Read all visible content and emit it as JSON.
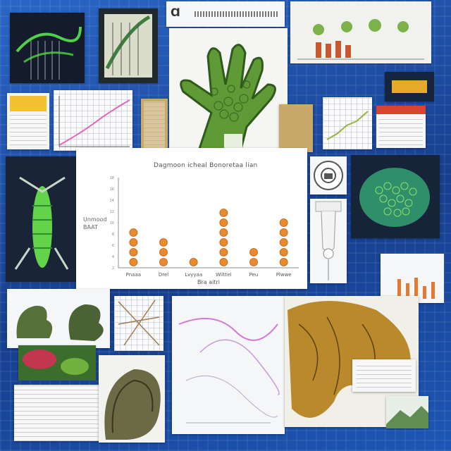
{
  "collage": {
    "style": "AI-generated collage of scientific / botanical illustrations on a blue circuit background",
    "accent_color": "#e98a2c",
    "background_color": "#1f4fa8",
    "plant_color": "#5f9a36"
  },
  "center_panel": {
    "title": "Dagmoon icheal Bonoretaa lian",
    "yaxis_label": "Unmood\nBAAT",
    "xaxis_label": "Bra aitri",
    "x_tick_labels": [
      "Pnaaa",
      "Drel",
      "Lvyyaa",
      "Wilttel",
      "Peu",
      "Plwwe"
    ],
    "y_tick_labels": [
      "18",
      "16",
      "14",
      "12",
      "10",
      "8",
      "6",
      "4",
      "2"
    ]
  },
  "chart_data": {
    "type": "scatter",
    "categories": [
      "Pnaaa",
      "Drel",
      "Lvyyaa",
      "Wilttel",
      "Peu",
      "Plwwe"
    ],
    "stack_counts": [
      4,
      3,
      1,
      6,
      2,
      5
    ],
    "title": "Dagmoon icheal Bonoretaa lian",
    "xlabel": "Bra aitri",
    "ylabel": "Unmood BAAT",
    "ylim": [
      0,
      18
    ],
    "grid": false,
    "marker_color": "#e98a2c"
  },
  "top_strip": {
    "header_text": "Ɑ"
  }
}
